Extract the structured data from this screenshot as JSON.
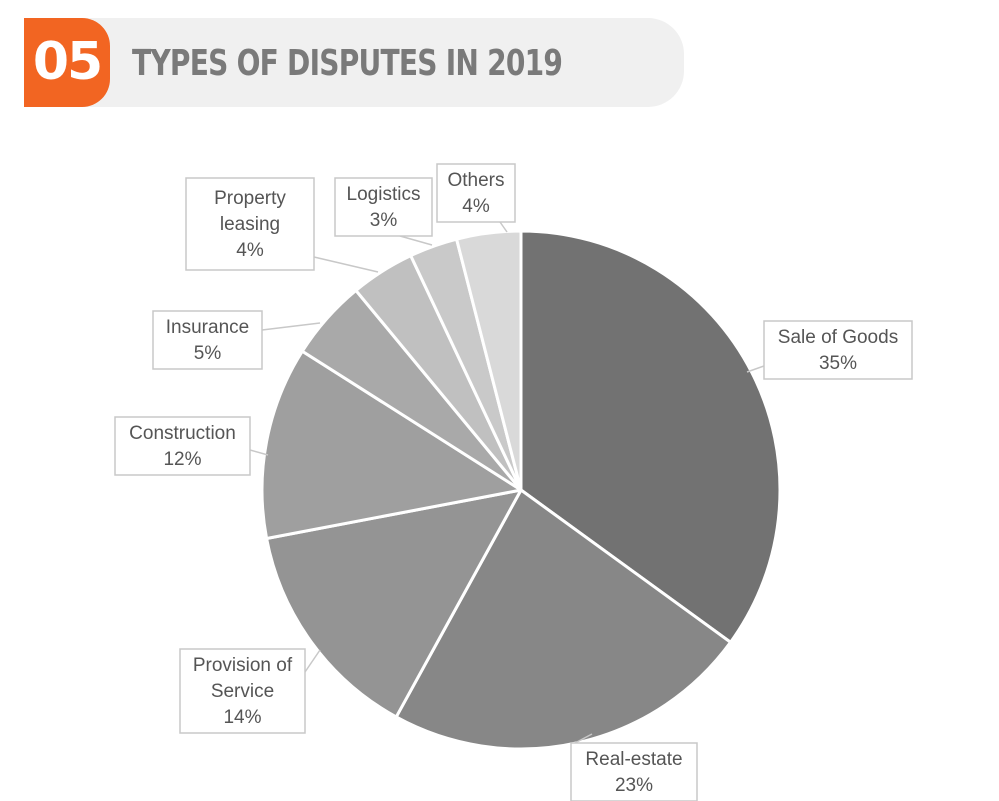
{
  "header": {
    "number": "05",
    "title": "TYPES OF DISPUTES IN 2019",
    "accent_color": "#f26522"
  },
  "chart_data": {
    "type": "pie",
    "title": "TYPES OF DISPUTES IN 2019",
    "unit": "%",
    "slices": [
      {
        "label": [
          "Sale of Goods"
        ],
        "value": 35,
        "color": "#727272"
      },
      {
        "label": [
          "Real-estate"
        ],
        "value": 23,
        "color": "#878787"
      },
      {
        "label": [
          "Provision of",
          "Service"
        ],
        "value": 14,
        "color": "#949494"
      },
      {
        "label": [
          "Construction"
        ],
        "value": 12,
        "color": "#9f9f9f"
      },
      {
        "label": [
          "Insurance"
        ],
        "value": 5,
        "color": "#a9a9a9"
      },
      {
        "label": [
          "Property",
          "leasing"
        ],
        "value": 4,
        "color": "#c0c0c0"
      },
      {
        "label": [
          "Logistics"
        ],
        "value": 3,
        "color": "#c9c9c9"
      },
      {
        "label": [
          "Others"
        ],
        "value": 4,
        "color": "#d9d9d9"
      }
    ]
  }
}
